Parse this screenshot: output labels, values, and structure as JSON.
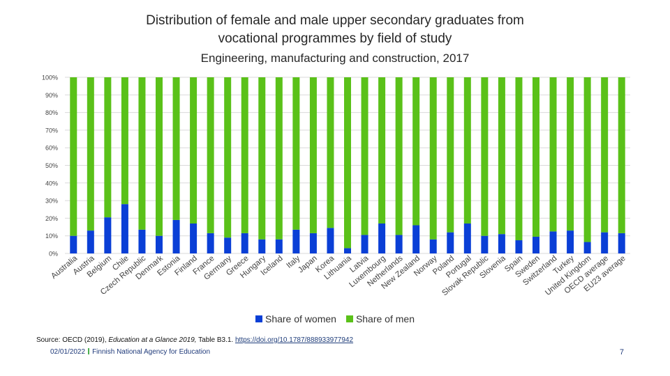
{
  "titles": {
    "line1": "Distribution of female and male upper secondary graduates from",
    "line2": "vocational programmes by field of study",
    "subtitle": "Engineering, manufacturing and construction, 2017"
  },
  "chart_data": {
    "type": "bar",
    "stacked": true,
    "title": "Distribution of female and male upper secondary graduates from vocational programmes by field of study",
    "subtitle": "Engineering, manufacturing and construction, 2017",
    "ylim": [
      0,
      100
    ],
    "yticks": [
      "0%",
      "10%",
      "20%",
      "30%",
      "40%",
      "50%",
      "60%",
      "70%",
      "80%",
      "90%",
      "100%"
    ],
    "grid": true,
    "legend_position": "bottom",
    "categories": [
      "Australia",
      "Austria",
      "Belgium",
      "Chile",
      "Czech Republic",
      "Denmark",
      "Estonia",
      "Finland",
      "France",
      "Germany",
      "Greece",
      "Hungary",
      "Iceland",
      "Italy",
      "Japan",
      "Korea",
      "Lithuania",
      "Latvia",
      "Luxembourg",
      "Netherlands",
      "New Zealand",
      "Norway",
      "Poland",
      "Portugal",
      "Slovak Republic",
      "Slovenia",
      "Spain",
      "Sweden",
      "Switzerland",
      "Turkey",
      "United Kingdom",
      "OECD average",
      "EU23 average"
    ],
    "series": [
      {
        "name": "Share of women",
        "color": "#0a3fd6",
        "values": [
          10,
          13,
          20.5,
          28,
          13.5,
          10,
          19,
          17,
          11.5,
          9,
          11.5,
          8,
          8,
          13.5,
          11.5,
          14.5,
          3,
          10.5,
          17,
          10.5,
          16,
          8,
          12,
          17,
          10,
          11,
          7.5,
          9.5,
          12.5,
          13,
          6.5,
          12,
          11.5
        ]
      },
      {
        "name": "Share of men",
        "color": "#5ac119",
        "values": [
          90,
          87,
          79.5,
          72,
          86.5,
          90,
          81,
          83,
          88.5,
          91,
          88.5,
          92,
          92,
          86.5,
          88.5,
          85.5,
          97,
          89.5,
          83,
          89.5,
          84,
          92,
          88,
          83,
          90,
          89,
          92.5,
          90.5,
          87.5,
          87,
          93.5,
          88,
          88.5
        ]
      }
    ]
  },
  "source": {
    "prefix": "Source: OECD (2019), ",
    "italic": "Education at a Glance 2019,",
    "rest": " Table B3.1. ",
    "link": "https://doi.org/10.1787/888933977942"
  },
  "footer": {
    "date": "02/01/2022",
    "org": "Finnish National Agency for Education",
    "page": "7"
  }
}
